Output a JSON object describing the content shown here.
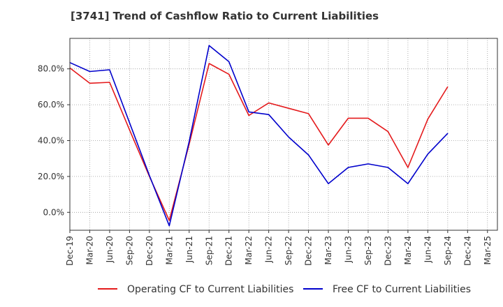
{
  "chart_data": {
    "type": "line",
    "title": "[3741]  Trend of Cashflow Ratio to Current Liabilities",
    "x": [
      "Dec-19",
      "Mar-20",
      "Jun-20",
      "Sep-20",
      "Dec-20",
      "Mar-21",
      "Jun-21",
      "Sep-21",
      "Dec-21",
      "Mar-22",
      "Jun-22",
      "Sep-22",
      "Dec-22",
      "Mar-23",
      "Jun-23",
      "Sep-23",
      "Dec-23",
      "Mar-24",
      "Jun-24",
      "Sep-24",
      "Dec-24",
      "Mar-25"
    ],
    "tick_labels": [
      "Dec-19",
      "Mar-20",
      "Jun-20",
      "Sep-20",
      "Dec-20",
      "Mar-21",
      "Jun-21",
      "Sep-21",
      "Dec-21",
      "Mar-22",
      "Jun-22",
      "Sep-22",
      "Dec-22",
      "Mar-23",
      "Jun-23",
      "Sep-23",
      "Dec-23",
      "Mar-24",
      "Jun-24",
      "Sep-24",
      "Dec-24",
      "Mar-25"
    ],
    "ylim": [
      -10,
      97
    ],
    "yticks": [
      0,
      20,
      40,
      60,
      80
    ],
    "ytick_labels": [
      "0.0%",
      "20.0%",
      "40.0%",
      "60.0%",
      "80.0%"
    ],
    "grid": true,
    "legend_position": "bottom",
    "series": [
      {
        "name": "Operating CF to Current Liabilities",
        "color": "#e41a1c",
        "values": [
          80.5,
          72.0,
          72.5,
          46.0,
          20.0,
          -4.5,
          38.0,
          83.0,
          77.0,
          54.0,
          61.0,
          58.0,
          55.0,
          37.5,
          52.5,
          52.5,
          45.0,
          25.0,
          52.0,
          70.0,
          null,
          null
        ]
      },
      {
        "name": "Free CF to Current Liabilities",
        "color": "#0000cc",
        "values": [
          83.5,
          78.5,
          79.5,
          50.0,
          20.5,
          -7.5,
          39.5,
          93.0,
          84.0,
          56.0,
          54.5,
          42.0,
          32.0,
          16.0,
          25.0,
          27.0,
          25.0,
          16.0,
          32.5,
          44.0,
          null,
          null
        ]
      }
    ]
  }
}
